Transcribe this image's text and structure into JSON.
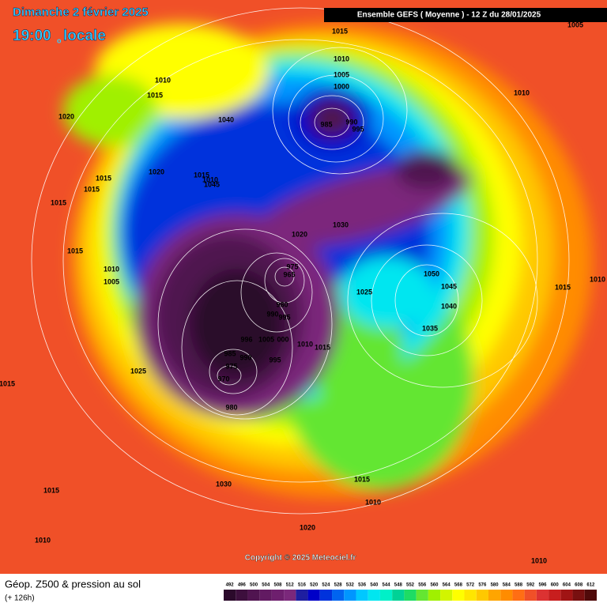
{
  "header": {
    "date": "Dimanche 2 février 2025",
    "time": "19:00",
    "time_marker": "o",
    "time_zone": "locale",
    "model": "Ensemble GEFS  ( Moyenne )  -  12 Z du 28/01/2025"
  },
  "map": {
    "pressure_labels": [
      "1015",
      "1010",
      "1005",
      "1000",
      "985",
      "990",
      "995",
      "1010",
      "1015",
      "1020",
      "1040",
      "1010",
      "1005",
      "1020",
      "1015",
      "1015",
      "1010",
      "1045",
      "1015",
      "1015",
      "1015",
      "1010",
      "1005",
      "1020",
      "1030",
      "975",
      "965",
      "980",
      "990",
      "995",
      "1025",
      "1050",
      "1045",
      "1040",
      "1035",
      "1015",
      "1010",
      "996",
      "1005",
      "000",
      "1010",
      "1015",
      "985",
      "990",
      "995",
      "975",
      "970",
      "980",
      "1025",
      "1015",
      "1030",
      "1015",
      "1015",
      "1010",
      "1020",
      "1010",
      "1010"
    ],
    "copyright": "Copyright © 2025 Meteociel.fr"
  },
  "footer": {
    "title": "Géop. Z500 & pression au sol",
    "lead": "(+ 126h)"
  },
  "colorbar": {
    "ticks": [
      492,
      496,
      500,
      504,
      508,
      512,
      516,
      520,
      524,
      528,
      532,
      536,
      540,
      544,
      548,
      552,
      556,
      560,
      564,
      568,
      572,
      576,
      580,
      584,
      588,
      592,
      596,
      600,
      604,
      608,
      612
    ],
    "colors": [
      "#2b0a2b",
      "#3d0f3d",
      "#501450",
      "#621a62",
      "#6e1f6e",
      "#7b287b",
      "#1e1ea0",
      "#0000c8",
      "#0032dc",
      "#0064f0",
      "#0096ff",
      "#00c8ff",
      "#00e6f0",
      "#00f0c8",
      "#00d296",
      "#1edc64",
      "#64e632",
      "#a0f000",
      "#d2f500",
      "#ffff00",
      "#ffe600",
      "#ffc800",
      "#ffa500",
      "#ff8c00",
      "#ff6e14",
      "#f05028",
      "#dc3232",
      "#c81e1e",
      "#a01414",
      "#781010",
      "#500a0a"
    ]
  }
}
